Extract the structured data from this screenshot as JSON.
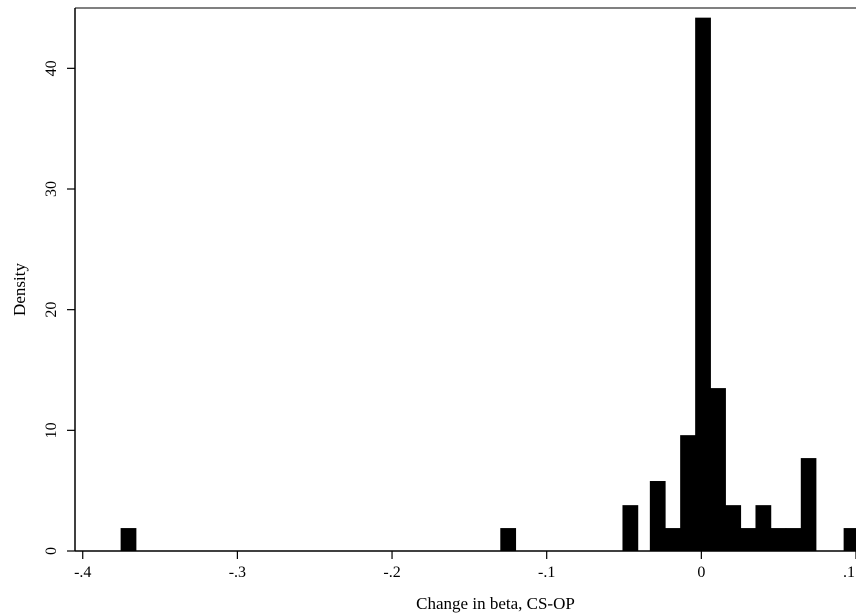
{
  "chart_data": {
    "type": "bar",
    "xlabel": "Change in beta, CS-OP",
    "ylabel": "Density",
    "xlim": [
      -0.405,
      0.1
    ],
    "ylim": [
      0,
      45
    ],
    "x_ticks": [
      -0.4,
      -0.3,
      -0.2,
      -0.1,
      0,
      0.1
    ],
    "x_tick_labels": [
      "-.4",
      "-.3",
      "-.2",
      "-.1",
      "0",
      ".1"
    ],
    "y_ticks": [
      0,
      10,
      20,
      30,
      40
    ],
    "y_tick_labels": [
      "0",
      "10",
      "20",
      "30",
      "40"
    ],
    "grid": false,
    "legend": "none",
    "bar_color": "#000000",
    "bin_width": 0.00975,
    "bins": [
      {
        "x0": -0.3755,
        "x1": -0.3657,
        "density": 1.9
      },
      {
        "x0": -0.13,
        "x1": -0.1202,
        "density": 1.9
      },
      {
        "x0": -0.051,
        "x1": -0.0412,
        "density": 3.8
      },
      {
        "x0": -0.0333,
        "x1": -0.0235,
        "density": 5.8
      },
      {
        "x0": -0.0235,
        "x1": -0.0137,
        "density": 1.9
      },
      {
        "x0": -0.0137,
        "x1": -0.004,
        "density": 9.6
      },
      {
        "x0": -0.004,
        "x1": 0.0058,
        "density": 44.2
      },
      {
        "x0": 0.0058,
        "x1": 0.0155,
        "density": 13.5
      },
      {
        "x0": 0.0155,
        "x1": 0.0253,
        "density": 3.8
      },
      {
        "x0": 0.0253,
        "x1": 0.035,
        "density": 1.9
      },
      {
        "x0": 0.035,
        "x1": 0.0448,
        "density": 3.8
      },
      {
        "x0": 0.0448,
        "x1": 0.0545,
        "density": 1.9
      },
      {
        "x0": 0.0545,
        "x1": 0.0643,
        "density": 1.9
      },
      {
        "x0": 0.0643,
        "x1": 0.074,
        "density": 7.7
      },
      {
        "x0": 0.092,
        "x1": 0.1017,
        "density": 1.9
      }
    ]
  }
}
